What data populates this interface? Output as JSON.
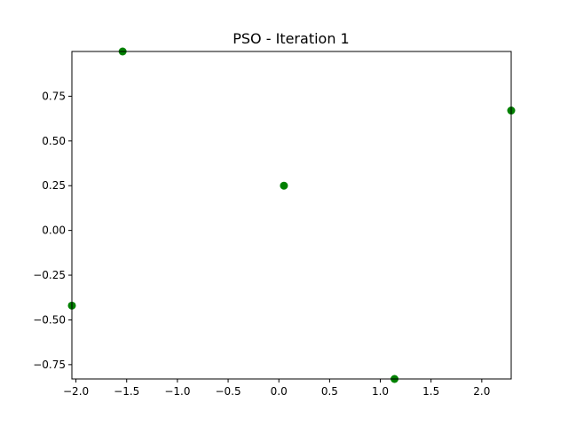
{
  "chart_data": {
    "type": "scatter",
    "title": "PSO - Iteration 1",
    "xlabel": "",
    "ylabel": "",
    "xlim": [
      -2.04,
      2.29
    ],
    "ylim": [
      -0.83,
      1.0
    ],
    "xticks": [
      -2.0,
      -1.5,
      -1.0,
      -0.5,
      0.0,
      0.5,
      1.0,
      1.5,
      2.0
    ],
    "xtick_labels": [
      "−2.0",
      "−1.5",
      "−1.0",
      "−0.5",
      "0.0",
      "0.5",
      "1.0",
      "1.5",
      "2.0"
    ],
    "yticks": [
      -0.75,
      -0.5,
      -0.25,
      0.0,
      0.25,
      0.5,
      0.75
    ],
    "ytick_labels": [
      "−0.75",
      "−0.50",
      "−0.25",
      "0.00",
      "0.25",
      "0.50",
      "0.75"
    ],
    "grid": false,
    "legend": "none",
    "points": [
      {
        "x": -1.54,
        "y": 1.0
      },
      {
        "x": 2.29,
        "y": 0.67
      },
      {
        "x": 0.05,
        "y": 0.25
      },
      {
        "x": -2.04,
        "y": -0.42
      },
      {
        "x": 1.14,
        "y": -0.83
      }
    ],
    "point_color": "#008000"
  }
}
